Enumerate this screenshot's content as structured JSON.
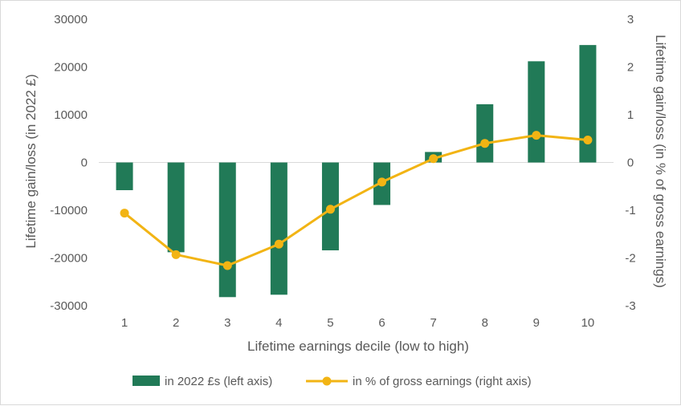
{
  "chart_data": {
    "type": "bar+line",
    "title": "",
    "xlabel": "Lifetime earnings decile (low to high)",
    "ylabel_left": "Lifetime gain/loss (in 2022 £)",
    "ylabel_right": "Lifetime gain/loss (in % of gross earnings)",
    "categories": [
      "1",
      "2",
      "3",
      "4",
      "5",
      "6",
      "7",
      "8",
      "9",
      "10"
    ],
    "ylim_left": [
      -30000,
      30000
    ],
    "ylim_right": [
      -3,
      3
    ],
    "yticks_left": [
      "30000",
      "20000",
      "10000",
      "0",
      "-10000",
      "-20000",
      "-30000"
    ],
    "yticks_right": [
      "3",
      "2",
      "1",
      "0",
      "-1",
      "-2",
      "-3"
    ],
    "grid": false,
    "legend_position": "bottom",
    "series": [
      {
        "name": "in 2022 £s (left axis)",
        "kind": "bar",
        "axis": "left",
        "color": "#217a57",
        "values": [
          -5800,
          -18800,
          -28200,
          -27700,
          -18400,
          -8900,
          2200,
          12200,
          21200,
          24600
        ]
      },
      {
        "name": "in % of gross earnings (right axis)",
        "kind": "line",
        "axis": "right",
        "color": "#f2b414",
        "values": [
          -1.06,
          -1.93,
          -2.16,
          -1.71,
          -0.98,
          -0.41,
          0.08,
          0.4,
          0.57,
          0.47
        ]
      }
    ]
  }
}
